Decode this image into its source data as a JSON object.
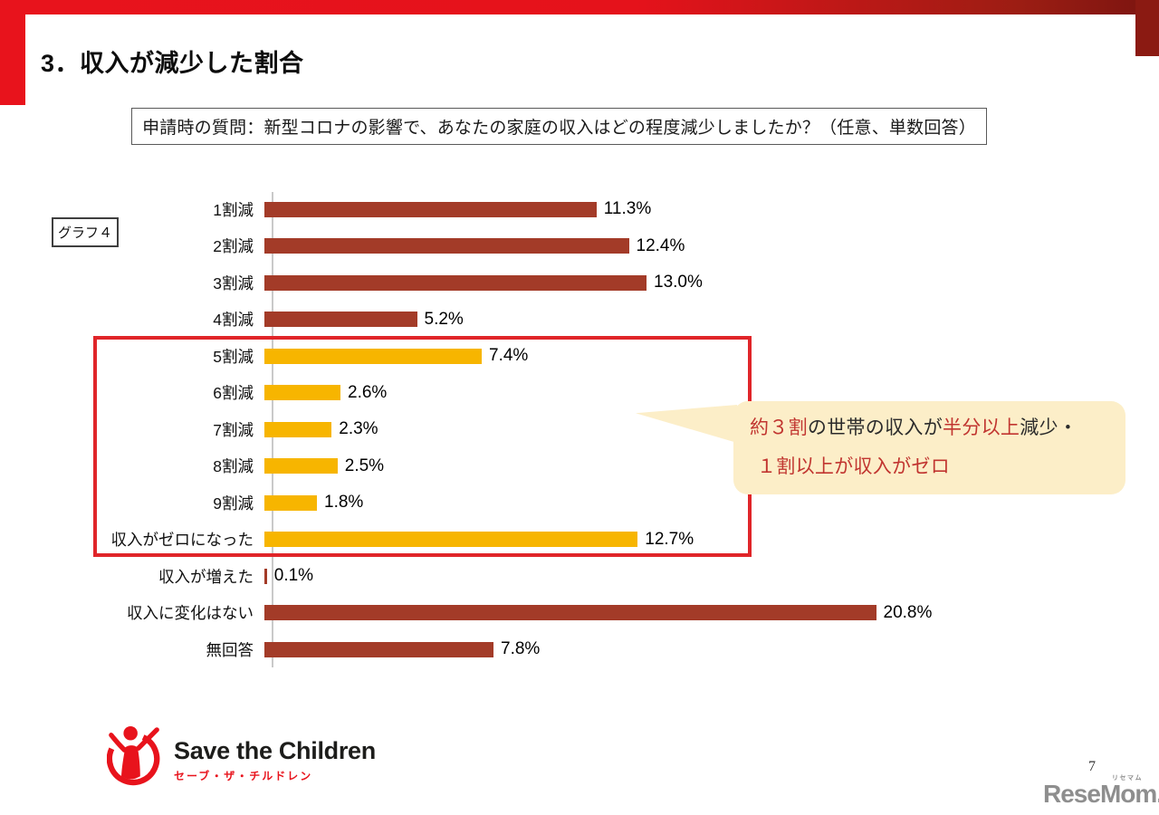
{
  "slide": {
    "title": "3．収入が減少した割合",
    "question_box": "申請時の質問：新型コロナの影響で、あなたの家庭の収入はどの程度減少しましたか？（任意、単数回答）",
    "graph_tag": "グラフ４",
    "page_number": "7"
  },
  "chart_data": {
    "type": "bar",
    "orientation": "horizontal",
    "title": "",
    "categories": [
      "1割減",
      "2割減",
      "3割減",
      "4割減",
      "5割減",
      "6割減",
      "7割減",
      "8割減",
      "9割減",
      "収入がゼロになった",
      "収入が増えた",
      "収入に変化はない",
      "無回答"
    ],
    "values": [
      11.3,
      12.4,
      13.0,
      5.2,
      7.4,
      2.6,
      2.3,
      2.5,
      1.8,
      12.7,
      0.1,
      20.8,
      7.8
    ],
    "value_labels": [
      "11.3%",
      "12.4%",
      "13.0%",
      "5.2%",
      "7.4%",
      "2.6%",
      "2.3%",
      "2.5%",
      "1.8%",
      "12.7%",
      "0.1%",
      "20.8%",
      "7.8%"
    ],
    "bar_color_keys": [
      "brown",
      "brown",
      "brown",
      "brown",
      "yellow",
      "yellow",
      "yellow",
      "yellow",
      "yellow",
      "yellow",
      "brown",
      "brown",
      "brown"
    ],
    "highlight_rows_from_to": [
      "5割減",
      "収入がゼロになった"
    ],
    "legend": "none",
    "value_axis_visible": false,
    "xlim": [
      0,
      22
    ]
  },
  "callout": {
    "line1_parts": [
      {
        "text": "約３割",
        "red": true
      },
      {
        "text": "の世帯の収入が",
        "red": false
      },
      {
        "text": "半分以上",
        "red": true
      },
      {
        "text": "減少・",
        "red": false
      }
    ],
    "line2_parts": [
      {
        "text": "１割以上が収入がゼロ",
        "red": true
      }
    ]
  },
  "footer": {
    "org_name": "Save the Children",
    "org_name_ja": "セーブ・ザ・チルドレン",
    "source_logo": "ReseMom.",
    "source_logo_ruby": "リセマム"
  },
  "colors": {
    "accent_red": "#e8131c",
    "dark_red": "#8b1a12",
    "bar_brown": "#a33b28",
    "bar_yellow": "#f7b500",
    "highlight_border": "#e02529",
    "callout_bg": "#fceec8",
    "callout_text_red": "#c13530",
    "logo_gray": "#8e8e8e"
  }
}
